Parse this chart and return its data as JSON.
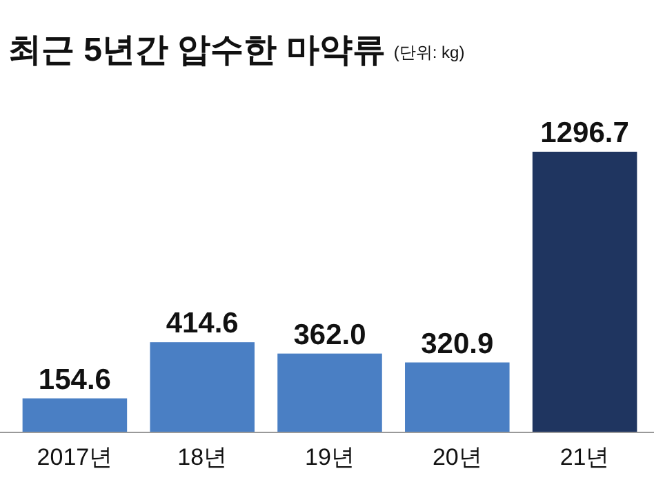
{
  "chart_data": {
    "type": "bar",
    "title": "최근 5년간 압수한 마약류",
    "subtitle": "(단위: kg)",
    "categories": [
      "2017년",
      "18년",
      "19년",
      "20년",
      "21년"
    ],
    "values": [
      154.6,
      414.6,
      362.0,
      320.9,
      1296.7
    ],
    "value_labels": [
      "154.6",
      "414.6",
      "362.0",
      "320.9",
      "1296.7"
    ],
    "colors": [
      "#4a7fc4",
      "#4a7fc4",
      "#4a7fc4",
      "#4a7fc4",
      "#1f3560"
    ]
  }
}
